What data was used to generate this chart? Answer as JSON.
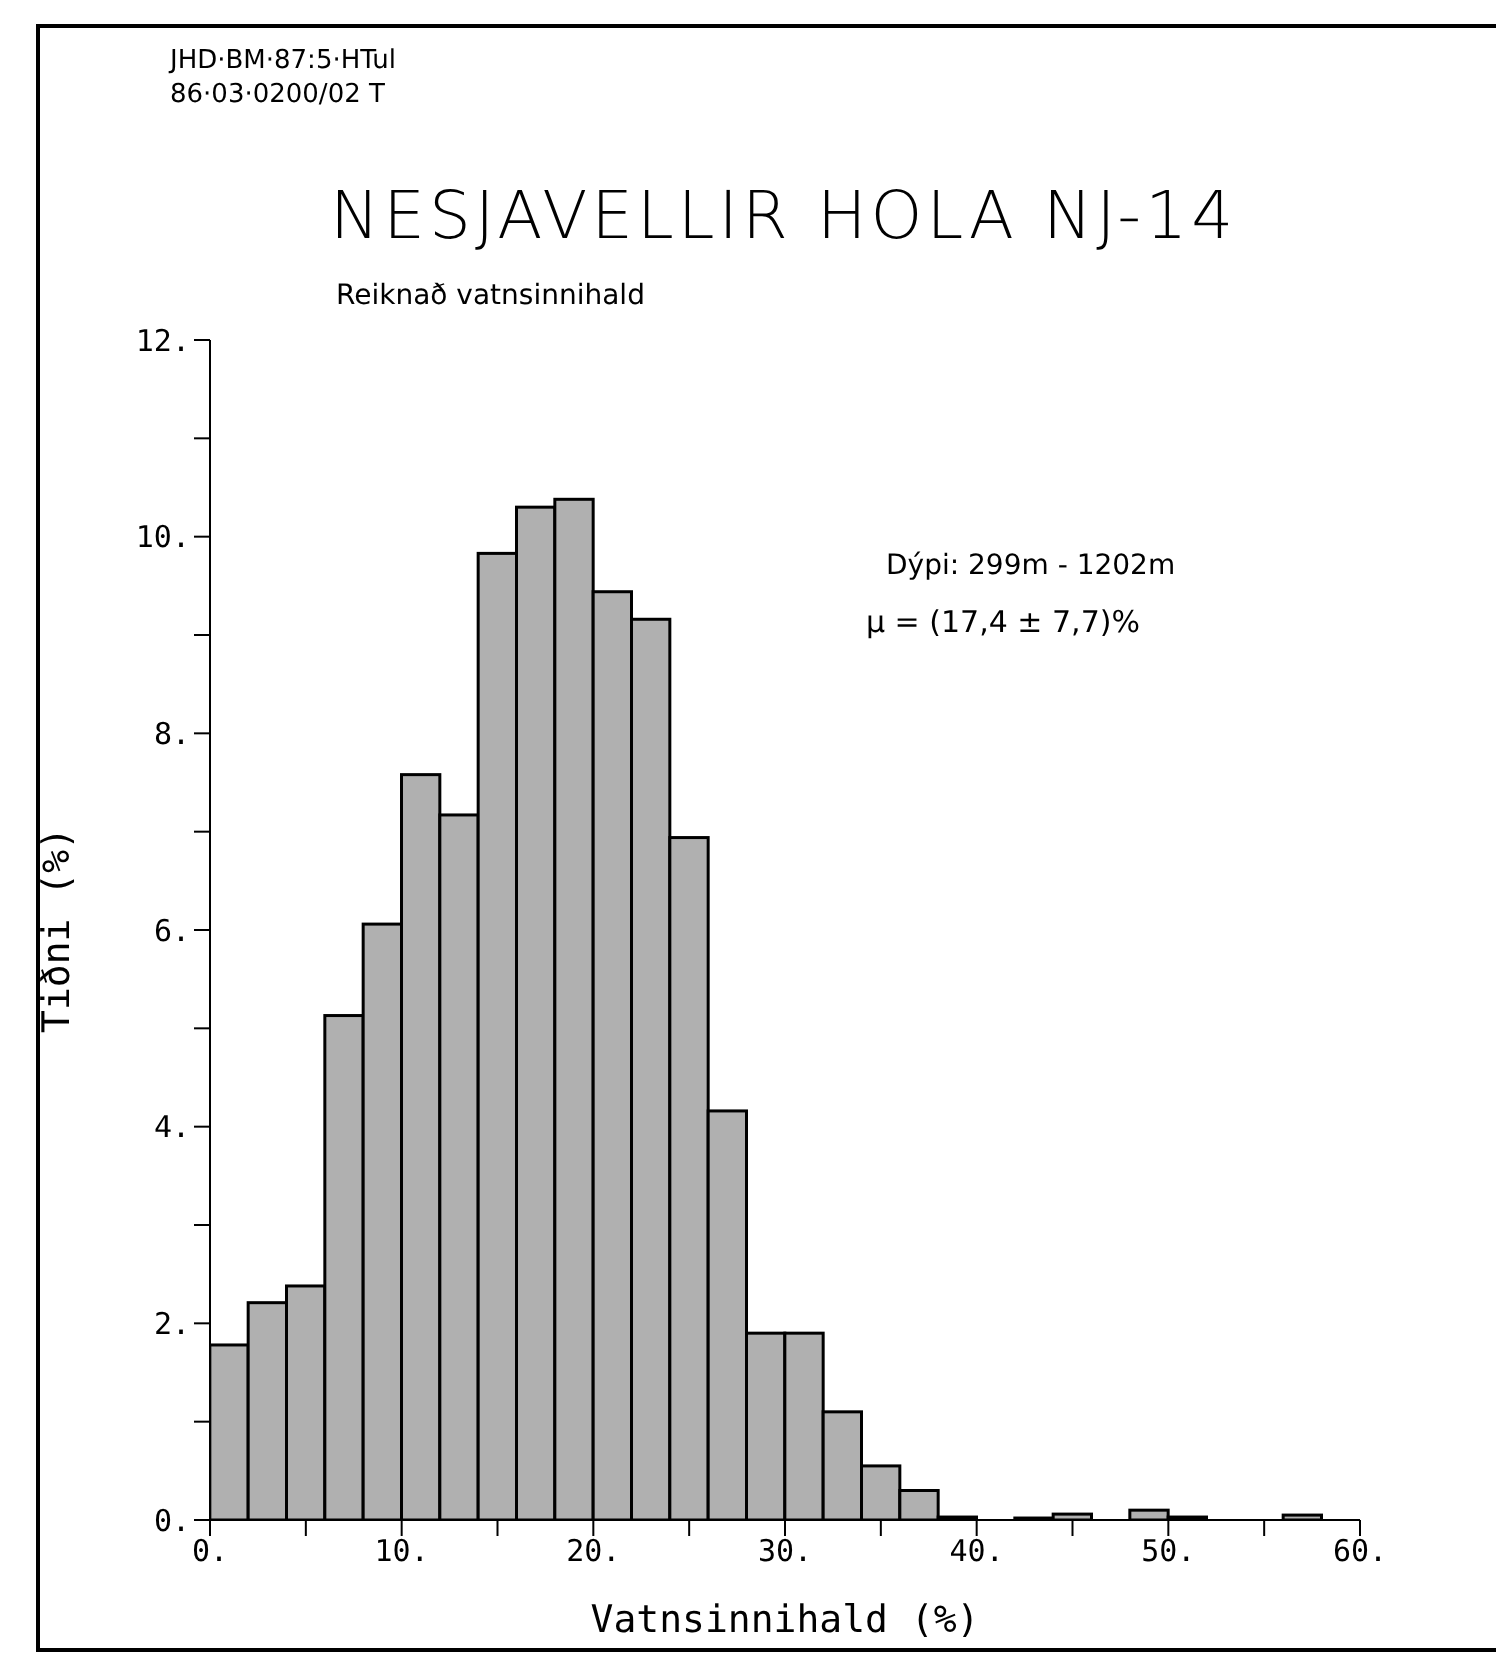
{
  "chart_data": {
    "type": "histogram",
    "title": "NESJAVELLIR HOLA NJ-14",
    "subtitle": "Reiknað vatnsinnihald",
    "xlabel": "Vatnsinnihald (%)",
    "ylabel": "Tiðni (%)",
    "annotations": [
      "JHD·BM·87:5·HTul",
      "86·03·0200/02 T",
      "Dýpi: 299m - 1202m",
      "μ = (17,4 ± 7,7)%"
    ],
    "bins": [
      0,
      2,
      4,
      6,
      8,
      10,
      12,
      14,
      16,
      18,
      20,
      22,
      24,
      26,
      28,
      30,
      32,
      34,
      36,
      38,
      40,
      42,
      44,
      46,
      48,
      50,
      52,
      54,
      56,
      58,
      60
    ],
    "values": [
      1.78,
      2.21,
      2.38,
      5.13,
      6.06,
      7.58,
      7.17,
      9.83,
      10.3,
      10.38,
      9.44,
      9.16,
      6.94,
      4.16,
      1.9,
      1.9,
      1.1,
      0.55,
      0.3,
      0.03,
      null,
      0.02,
      0.06,
      0,
      0.1,
      0.03,
      0,
      0,
      0.05,
      0
    ],
    "color": "#b0b0b0",
    "xlim": [
      0,
      60
    ],
    "xticks": [
      {
        "value": 0,
        "label": "0."
      },
      {
        "value": 5,
        "label": null
      },
      {
        "value": 10,
        "label": "10."
      },
      {
        "value": 15,
        "label": null
      },
      {
        "value": 20,
        "label": "20."
      },
      {
        "value": 25,
        "label": null
      },
      {
        "value": 30,
        "label": "30."
      },
      {
        "value": 35,
        "label": null
      },
      {
        "value": 40,
        "label": "40."
      },
      {
        "value": 45,
        "label": null
      },
      {
        "value": 50,
        "label": "50."
      },
      {
        "value": 55,
        "label": null
      },
      {
        "value": 60,
        "label": "60."
      }
    ],
    "ylim": [
      0,
      12
    ],
    "yticks": [
      {
        "value": 0,
        "label": "0."
      },
      {
        "value": 1,
        "label": null
      },
      {
        "value": 2,
        "label": "2."
      },
      {
        "value": 3,
        "label": null
      },
      {
        "value": 4,
        "label": "4."
      },
      {
        "value": 5,
        "label": null
      },
      {
        "value": 6,
        "label": "6."
      },
      {
        "value": 7,
        "label": null
      },
      {
        "value": 8,
        "label": "8."
      },
      {
        "value": 9,
        "label": null
      },
      {
        "value": 10,
        "label": "10."
      },
      {
        "value": 11,
        "label": null
      },
      {
        "value": 12,
        "label": "12."
      }
    ],
    "grid": false,
    "legend": false
  }
}
